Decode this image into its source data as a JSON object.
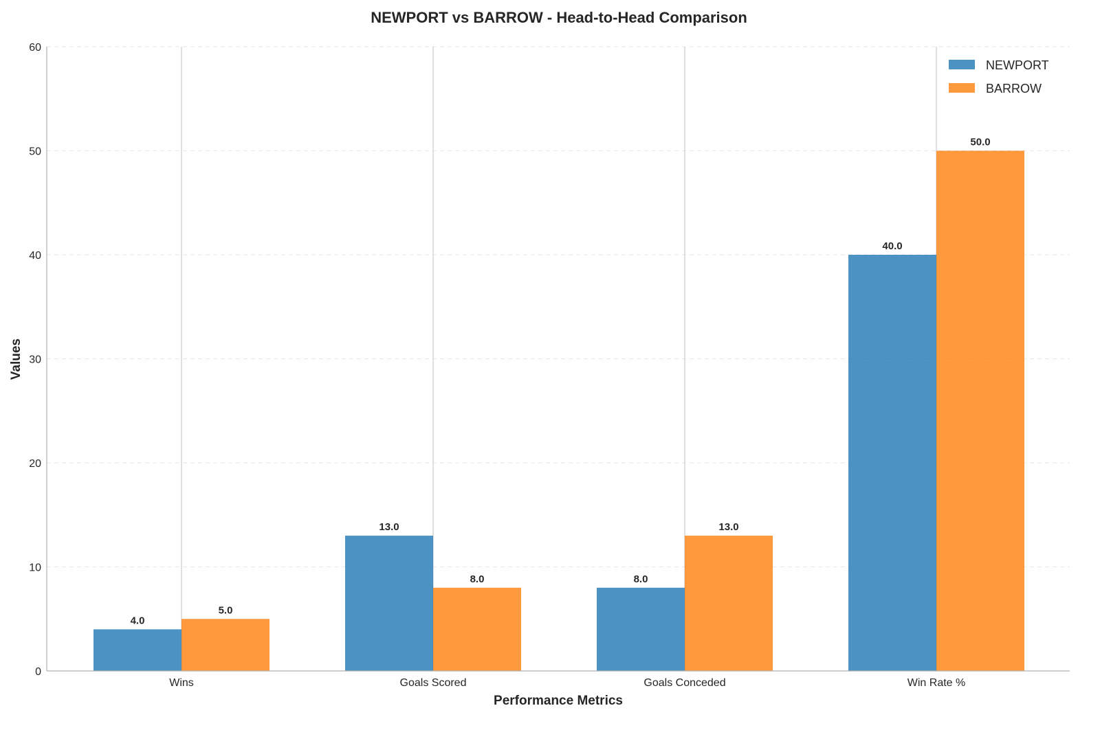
{
  "chart_data": {
    "type": "bar",
    "title": "NEWPORT vs BARROW - Head-to-Head Comparison",
    "xlabel": "Performance Metrics",
    "ylabel": "Values",
    "categories": [
      "Wins",
      "Goals Scored",
      "Goals Conceded",
      "Win Rate %"
    ],
    "series": [
      {
        "name": "NEWPORT",
        "color": "#1f77b4",
        "values": [
          4.0,
          13.0,
          8.0,
          40.0
        ],
        "labels": [
          "4.0",
          "13.0",
          "8.0",
          "40.0"
        ]
      },
      {
        "name": "BARROW",
        "color": "#ff7f0e",
        "values": [
          5.0,
          8.0,
          13.0,
          50.0
        ],
        "labels": [
          "5.0",
          "8.0",
          "13.0",
          "50.0"
        ]
      }
    ],
    "ylim": [
      0,
      60
    ],
    "yticks": [
      0,
      10,
      20,
      30,
      40,
      50,
      60
    ],
    "ytick_labels": [
      "0",
      "10",
      "20",
      "30",
      "40",
      "50",
      "60"
    ],
    "grid": true,
    "legend_position": "top-right"
  }
}
